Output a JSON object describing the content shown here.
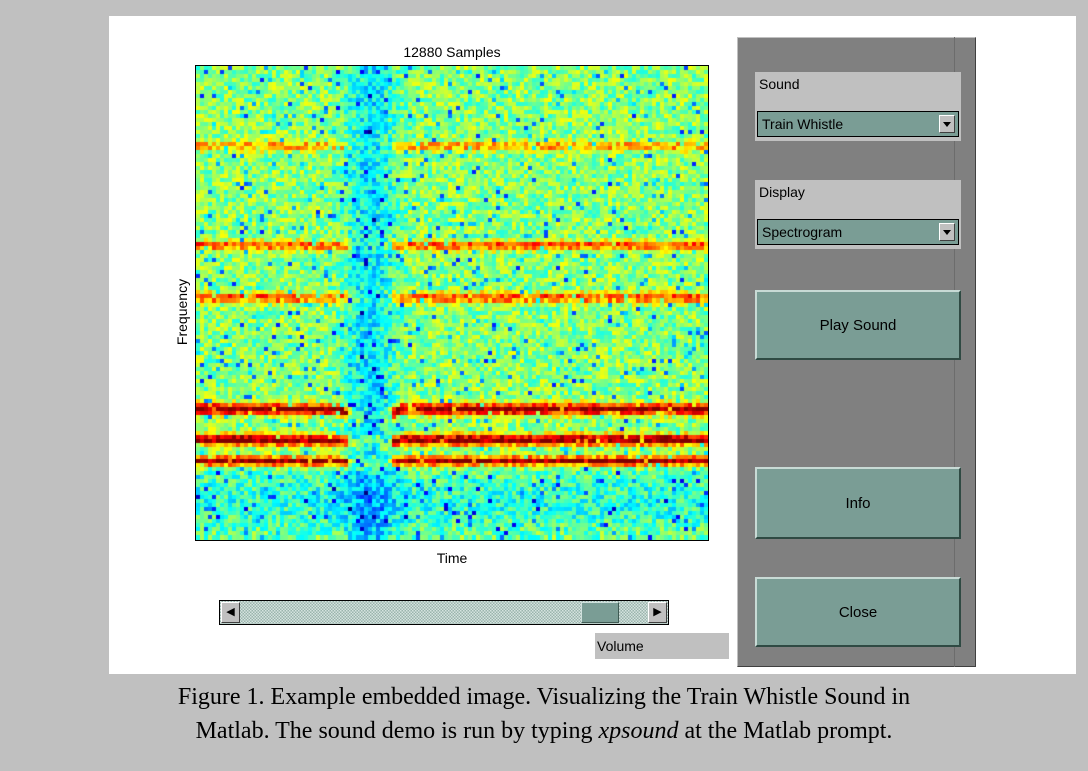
{
  "plot": {
    "title": "12880 Samples",
    "xlabel": "Time",
    "ylabel": "Frequency"
  },
  "controls": {
    "sound_label": "Sound",
    "sound_value": "Train Whistle",
    "display_label": "Display",
    "display_value": "Spectrogram",
    "play_button": "Play Sound",
    "info_button": "Info",
    "close_button": "Close",
    "volume_label": "Volume",
    "volume_level": 0.92
  },
  "caption": {
    "line1": "Figure 1.  Example embedded image.  Visualizing the Train Whistle Sound in",
    "line2_pre": "Matlab.  The sound demo is run by typing ",
    "line2_em": "xpsound",
    "line2_post": " at the Matlab prompt."
  },
  "colors": {
    "panel_gray": "#808080",
    "button_teal": "#7a9d95",
    "control_gray": "#c0c0c0"
  }
}
